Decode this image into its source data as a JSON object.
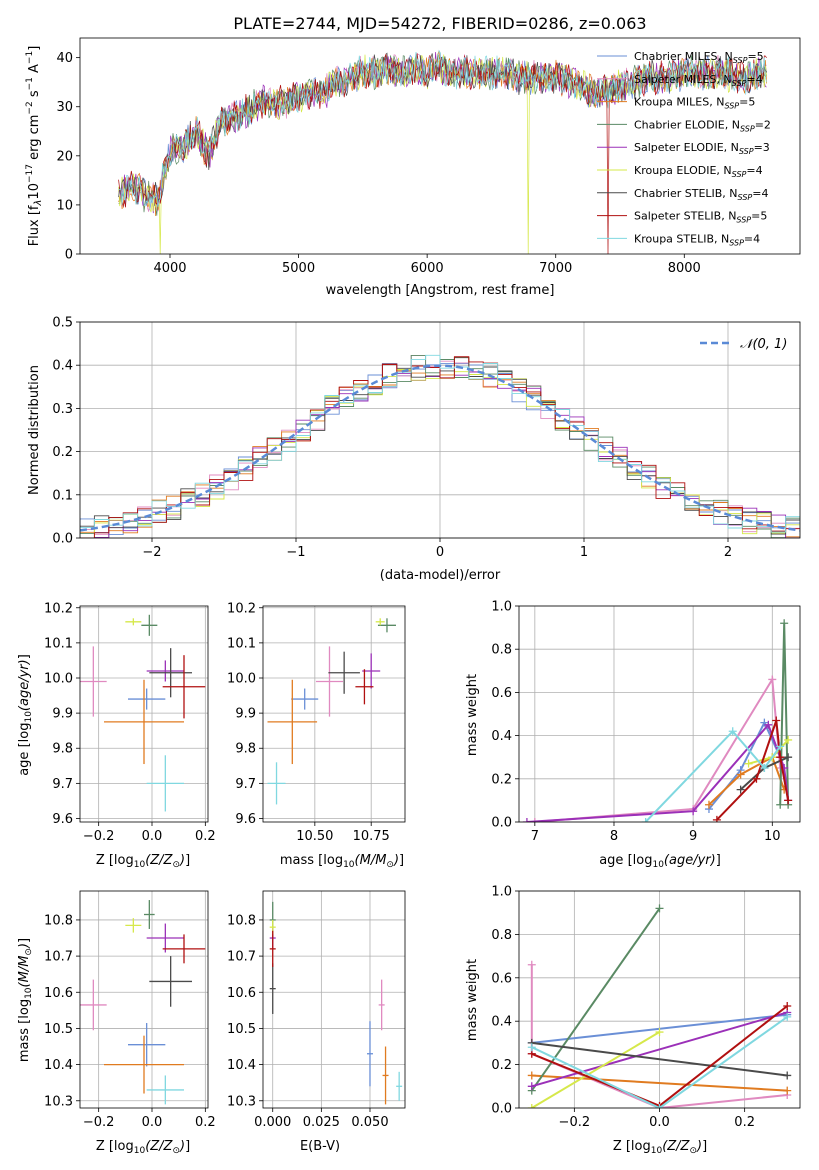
{
  "title": "PLATE=2744, MJD=54272, FIBERID=0286, z=0.063",
  "series_styles": [
    {
      "name": "Chabrier MILES",
      "nssp": "5",
      "color": "#6a8fd6"
    },
    {
      "name": "Salpeter MILES",
      "nssp": "4",
      "color": "#e08ac0"
    },
    {
      "name": "Kroupa MILES",
      "nssp": "5",
      "color": "#e07b20"
    },
    {
      "name": "Chabrier ELODIE",
      "nssp": "2",
      "color": "#5a8a64"
    },
    {
      "name": "Salpeter ELODIE",
      "nssp": "3",
      "color": "#9b30b8"
    },
    {
      "name": "Kroupa ELODIE",
      "nssp": "4",
      "color": "#d6e84a"
    },
    {
      "name": "Chabrier STELIB",
      "nssp": "4",
      "color": "#4a4a4a"
    },
    {
      "name": "Salpeter STELIB",
      "nssp": "5",
      "color": "#b01010"
    },
    {
      "name": "Kroupa STELIB",
      "nssp": "4",
      "color": "#80d8e0"
    }
  ],
  "chart_data": [
    {
      "type": "line",
      "title": "PLATE=2744, MJD=54272, FIBERID=0286, z=0.063",
      "xlabel": "wavelength [Angstrom, rest frame]",
      "ylabel": "Flux [f",
      "ylabel_sub": "λ",
      "ylabel_rest": "10",
      "ylabel_exp1": "−17",
      "ylabel_mid": " erg cm",
      "ylabel_exp2": "−2",
      "ylabel_mid2": " s",
      "ylabel_exp3": "−1",
      "ylabel_end": " A",
      "ylabel_exp4": "−1",
      "ylabel_close": "]",
      "xlim": [
        3300,
        8900
      ],
      "ylim": [
        0,
        44
      ],
      "xticks": [
        4000,
        5000,
        6000,
        7000,
        8000
      ],
      "yticks": [
        0,
        10,
        20,
        30,
        40
      ],
      "spectrum_x": [
        3600,
        3700,
        3800,
        3900,
        4000,
        4100,
        4200,
        4300,
        4400,
        4500,
        4600,
        4700,
        4800,
        4900,
        5000,
        5100,
        5200,
        5300,
        5400,
        5500,
        5600,
        5700,
        5800,
        5900,
        6000,
        6100,
        6200,
        6300,
        6400,
        6500,
        6600,
        6700,
        6800,
        6900,
        7000,
        7100,
        7200,
        7300,
        7400,
        7500,
        7600,
        7700,
        7800,
        7900,
        8000,
        8100,
        8200,
        8300,
        8400,
        8500,
        8600
      ],
      "spectrum_y": [
        12,
        14,
        12,
        11,
        21,
        22,
        25,
        20,
        27,
        28,
        29,
        31,
        31,
        31,
        32,
        33,
        33,
        35,
        36,
        37,
        37,
        38,
        37,
        38,
        37,
        38,
        37,
        37,
        37,
        37,
        37,
        36,
        36,
        36,
        36,
        35,
        34,
        33,
        33,
        34,
        35,
        36,
        36,
        36,
        37,
        37,
        37,
        37,
        36,
        36,
        37
      ]
    },
    {
      "type": "histogram",
      "xlabel": "(data-model)/error",
      "ylabel": "Normed distribution",
      "xlim": [
        -2.5,
        2.5
      ],
      "ylim": [
        0,
        0.5
      ],
      "xticks": [
        -2,
        -1,
        0,
        1,
        2
      ],
      "yticks": [
        0,
        0.1,
        0.2,
        0.3,
        0.4,
        0.5
      ],
      "xtick_labels": [
        "−2",
        "−1",
        "0",
        "1",
        "2"
      ],
      "ytick_labels": [
        "0.0",
        "0.1",
        "0.2",
        "0.3",
        "0.4",
        "0.5"
      ],
      "legend": "𝒩(0, 1)",
      "legend_placement": "top-right"
    },
    {
      "type": "scatter",
      "xlabel": "Z [log",
      "ylabel": "age  [log",
      "xlim": [
        -0.27,
        0.21
      ],
      "ylim": [
        9.59,
        10.205
      ],
      "xticks": [
        -0.2,
        0,
        0.2
      ],
      "xtick_labels": [
        "−0.2",
        "0.0",
        "0.2"
      ],
      "yticks": [
        9.6,
        9.7,
        9.8,
        9.9,
        10.0,
        10.1,
        10.2
      ],
      "ytick_labels": [
        "9.6",
        "9.7",
        "9.8",
        "9.9",
        "10.0",
        "10.1",
        "10.2"
      ],
      "points": [
        {
          "series": "Chabrier MILES",
          "x": -0.02,
          "y": 9.94,
          "xerr": 0.07,
          "yerr": 0.03
        },
        {
          "series": "Salpeter MILES",
          "x": -0.22,
          "y": 9.99,
          "xerr": 0.05,
          "yerr": 0.1
        },
        {
          "series": "Kroupa MILES",
          "x": -0.03,
          "y": 9.875,
          "xerr": 0.15,
          "yerr": 0.12
        },
        {
          "series": "Chabrier ELODIE",
          "x": -0.01,
          "y": 10.15,
          "xerr": 0.03,
          "yerr": 0.03
        },
        {
          "series": "Salpeter ELODIE",
          "x": 0.05,
          "y": 10.02,
          "xerr": 0.07,
          "yerr": 0.03
        },
        {
          "series": "Kroupa ELODIE",
          "x": -0.07,
          "y": 10.16,
          "xerr": 0.03,
          "yerr": 0.01
        },
        {
          "series": "Chabrier STELIB",
          "x": 0.07,
          "y": 10.015,
          "xerr": 0.08,
          "yerr": 0.07
        },
        {
          "series": "Salpeter STELIB",
          "x": 0.12,
          "y": 9.975,
          "xerr": 0.08,
          "yerr": 0.09
        },
        {
          "series": "Kroupa STELIB",
          "x": 0.05,
          "y": 9.7,
          "xerr": 0.07,
          "yerr": 0.08
        }
      ]
    },
    {
      "type": "scatter",
      "xlabel": "mass [log",
      "xlim": [
        10.27,
        10.9
      ],
      "ylim": [
        9.59,
        10.205
      ],
      "xticks": [
        10.5,
        10.75
      ],
      "xtick_labels": [
        "10.50",
        "10.75"
      ],
      "yticks": [
        9.6,
        9.7,
        9.8,
        9.9,
        10.0,
        10.1,
        10.2
      ],
      "ytick_labels": [
        "9.6",
        "9.7",
        "9.8",
        "9.9",
        "10.0",
        "10.1",
        "10.2"
      ],
      "points": [
        {
          "series": "Chabrier MILES",
          "x": 10.455,
          "y": 9.94,
          "xerr": 0.06,
          "yerr": 0.03
        },
        {
          "series": "Salpeter MILES",
          "x": 10.565,
          "y": 9.99,
          "xerr": 0.06,
          "yerr": 0.1
        },
        {
          "series": "Kroupa MILES",
          "x": 10.4,
          "y": 9.875,
          "xerr": 0.11,
          "yerr": 0.12
        },
        {
          "series": "Chabrier ELODIE",
          "x": 10.82,
          "y": 10.15,
          "xerr": 0.04,
          "yerr": 0.02
        },
        {
          "series": "Salpeter ELODIE",
          "x": 10.75,
          "y": 10.02,
          "xerr": 0.04,
          "yerr": 0.05
        },
        {
          "series": "Kroupa ELODIE",
          "x": 10.79,
          "y": 10.16,
          "xerr": 0.02,
          "yerr": 0.01
        },
        {
          "series": "Chabrier STELIB",
          "x": 10.63,
          "y": 10.015,
          "xerr": 0.07,
          "yerr": 0.06
        },
        {
          "series": "Salpeter STELIB",
          "x": 10.72,
          "y": 9.975,
          "xerr": 0.04,
          "yerr": 0.05
        },
        {
          "series": "Kroupa STELIB",
          "x": 10.33,
          "y": 9.7,
          "xerr": 0.04,
          "yerr": 0.06
        }
      ]
    },
    {
      "type": "line",
      "xlabel": "age  [log",
      "ylabel": "mass weight",
      "xlim": [
        6.8,
        10.35
      ],
      "ylim": [
        0,
        1
      ],
      "xticks": [
        7,
        8,
        9,
        10
      ],
      "xtick_labels": [
        "7",
        "8",
        "9",
        "10"
      ],
      "yticks": [
        0,
        0.2,
        0.4,
        0.6,
        0.8,
        1.0
      ],
      "ytick_labels": [
        "0.0",
        "0.2",
        "0.4",
        "0.6",
        "0.8",
        "1.0"
      ],
      "series": [
        {
          "name": "Chabrier MILES",
          "x": [
            9.2,
            9.6,
            9.9,
            10.1
          ],
          "y": [
            0.06,
            0.24,
            0.46,
            0.3
          ]
        },
        {
          "name": "Salpeter MILES",
          "x": [
            7.0,
            9.0,
            10.0,
            10.1
          ],
          "y": [
            0.0,
            0.06,
            0.66,
            0.25
          ]
        },
        {
          "name": "Kroupa MILES",
          "x": [
            9.2,
            9.6,
            10.0,
            10.15
          ],
          "y": [
            0.08,
            0.22,
            0.3,
            0.15
          ]
        },
        {
          "name": "Chabrier ELODIE",
          "x": [
            10.1,
            10.15,
            10.2
          ],
          "y": [
            0.08,
            0.92,
            0.08
          ]
        },
        {
          "name": "Salpeter ELODIE",
          "x": [
            6.9,
            9.0,
            9.95,
            10.15,
            10.2
          ],
          "y": [
            0.0,
            0.05,
            0.45,
            0.25,
            0.1
          ]
        },
        {
          "name": "Kroupa ELODIE",
          "x": [
            9.7,
            10.0,
            10.2
          ],
          "y": [
            0.27,
            0.3,
            0.38
          ]
        },
        {
          "name": "Chabrier STELIB",
          "x": [
            9.6,
            9.9,
            10.2
          ],
          "y": [
            0.15,
            0.25,
            0.3
          ]
        },
        {
          "name": "Salpeter STELIB",
          "x": [
            9.3,
            9.8,
            10.05,
            10.1,
            10.2
          ],
          "y": [
            0.01,
            0.2,
            0.47,
            0.3,
            0.1
          ]
        },
        {
          "name": "Kroupa STELIB",
          "x": [
            8.4,
            9.5,
            9.9,
            10.1
          ],
          "y": [
            0.0,
            0.42,
            0.25,
            0.35
          ]
        }
      ]
    },
    {
      "type": "scatter",
      "xlabel": "Z [log",
      "ylabel": "mass [log",
      "xlim": [
        -0.27,
        0.21
      ],
      "ylim": [
        10.28,
        10.88
      ],
      "xticks": [
        -0.2,
        0,
        0.2
      ],
      "xtick_labels": [
        "−0.2",
        "0.0",
        "0.2"
      ],
      "yticks": [
        10.3,
        10.4,
        10.5,
        10.6,
        10.7,
        10.8
      ],
      "ytick_labels": [
        "10.3",
        "10.4",
        "10.5",
        "10.6",
        "10.7",
        "10.8"
      ],
      "points": [
        {
          "series": "Chabrier MILES",
          "x": -0.02,
          "y": 10.455,
          "xerr": 0.07,
          "yerr": 0.06
        },
        {
          "series": "Salpeter MILES",
          "x": -0.22,
          "y": 10.565,
          "xerr": 0.05,
          "yerr": 0.07
        },
        {
          "series": "Kroupa MILES",
          "x": -0.03,
          "y": 10.4,
          "xerr": 0.15,
          "yerr": 0.08
        },
        {
          "series": "Chabrier ELODIE",
          "x": -0.01,
          "y": 10.815,
          "xerr": 0.02,
          "yerr": 0.04
        },
        {
          "series": "Salpeter ELODIE",
          "x": 0.05,
          "y": 10.75,
          "xerr": 0.07,
          "yerr": 0.04
        },
        {
          "series": "Kroupa ELODIE",
          "x": -0.07,
          "y": 10.785,
          "xerr": 0.03,
          "yerr": 0.02
        },
        {
          "series": "Chabrier STELIB",
          "x": 0.07,
          "y": 10.63,
          "xerr": 0.08,
          "yerr": 0.07
        },
        {
          "series": "Salpeter STELIB",
          "x": 0.12,
          "y": 10.72,
          "xerr": 0.08,
          "yerr": 0.04
        },
        {
          "series": "Kroupa STELIB",
          "x": 0.05,
          "y": 10.33,
          "xerr": 0.07,
          "yerr": 0.04
        }
      ]
    },
    {
      "type": "scatter",
      "xlabel": "E(B-V)",
      "xlim": [
        -0.005,
        0.068
      ],
      "ylim": [
        10.28,
        10.88
      ],
      "xticks": [
        0,
        0.025,
        0.05
      ],
      "xtick_labels": [
        "0.000",
        "0.025",
        "0.050"
      ],
      "yticks": [
        10.3,
        10.4,
        10.5,
        10.6,
        10.7,
        10.8
      ],
      "ytick_labels": [
        "10.3",
        "10.4",
        "10.5",
        "10.6",
        "10.7",
        "10.8"
      ],
      "points": [
        {
          "series": "Chabrier MILES",
          "x": 0.05,
          "y": 10.43,
          "yerr": 0.09
        },
        {
          "series": "Salpeter MILES",
          "x": 0.056,
          "y": 10.565,
          "yerr": 0.07
        },
        {
          "series": "Kroupa MILES",
          "x": 0.058,
          "y": 10.37,
          "yerr": 0.08
        },
        {
          "series": "Chabrier ELODIE",
          "x": 0.0,
          "y": 10.8,
          "yerr": 0.05
        },
        {
          "series": "Salpeter ELODIE",
          "x": 0.0,
          "y": 10.75,
          "yerr": 0.03
        },
        {
          "series": "Kroupa ELODIE",
          "x": 0.0,
          "y": 10.78,
          "yerr": 0.02
        },
        {
          "series": "Chabrier STELIB",
          "x": 0.0,
          "y": 10.61,
          "yerr": 0.07
        },
        {
          "series": "Salpeter STELIB",
          "x": 0.0,
          "y": 10.72,
          "yerr": 0.05
        },
        {
          "series": "Kroupa STELIB",
          "x": 0.065,
          "y": 10.34,
          "yerr": 0.04
        }
      ]
    },
    {
      "type": "line",
      "xlabel": "Z [log",
      "ylabel": "mass weight",
      "xlim": [
        -0.33,
        0.33
      ],
      "ylim": [
        0,
        1
      ],
      "xticks": [
        -0.2,
        0,
        0.2
      ],
      "xtick_labels": [
        "−0.2",
        "0.0",
        "0.2"
      ],
      "yticks": [
        0,
        0.2,
        0.4,
        0.6,
        0.8,
        1.0
      ],
      "ytick_labels": [
        "0.0",
        "0.2",
        "0.4",
        "0.6",
        "0.8",
        "1.0"
      ],
      "series": [
        {
          "name": "Chabrier MILES",
          "x": [
            -0.3,
            0.3
          ],
          "y": [
            0.3,
            0.43
          ]
        },
        {
          "name": "Salpeter MILES",
          "x": [
            -0.3,
            -0.3,
            0.0,
            0.3
          ],
          "y": [
            0.66,
            0.25,
            0.0,
            0.06
          ]
        },
        {
          "name": "Kroupa MILES",
          "x": [
            -0.3,
            0.3
          ],
          "y": [
            0.15,
            0.08
          ]
        },
        {
          "name": "Chabrier ELODIE",
          "x": [
            -0.3,
            0.0
          ],
          "y": [
            0.08,
            0.92
          ]
        },
        {
          "name": "Salpeter ELODIE",
          "x": [
            -0.3,
            0.3
          ],
          "y": [
            0.1,
            0.44
          ]
        },
        {
          "name": "Kroupa ELODIE",
          "x": [
            -0.3,
            0.0
          ],
          "y": [
            0.0,
            0.35
          ]
        },
        {
          "name": "Chabrier STELIB",
          "x": [
            -0.3,
            0.3
          ],
          "y": [
            0.3,
            0.15
          ]
        },
        {
          "name": "Salpeter STELIB",
          "x": [
            -0.3,
            0.0,
            0.3
          ],
          "y": [
            0.25,
            0.01,
            0.47
          ]
        },
        {
          "name": "Kroupa STELIB",
          "x": [
            -0.3,
            0.0,
            0.3
          ],
          "y": [
            0.28,
            0.0,
            0.42
          ]
        }
      ]
    }
  ]
}
